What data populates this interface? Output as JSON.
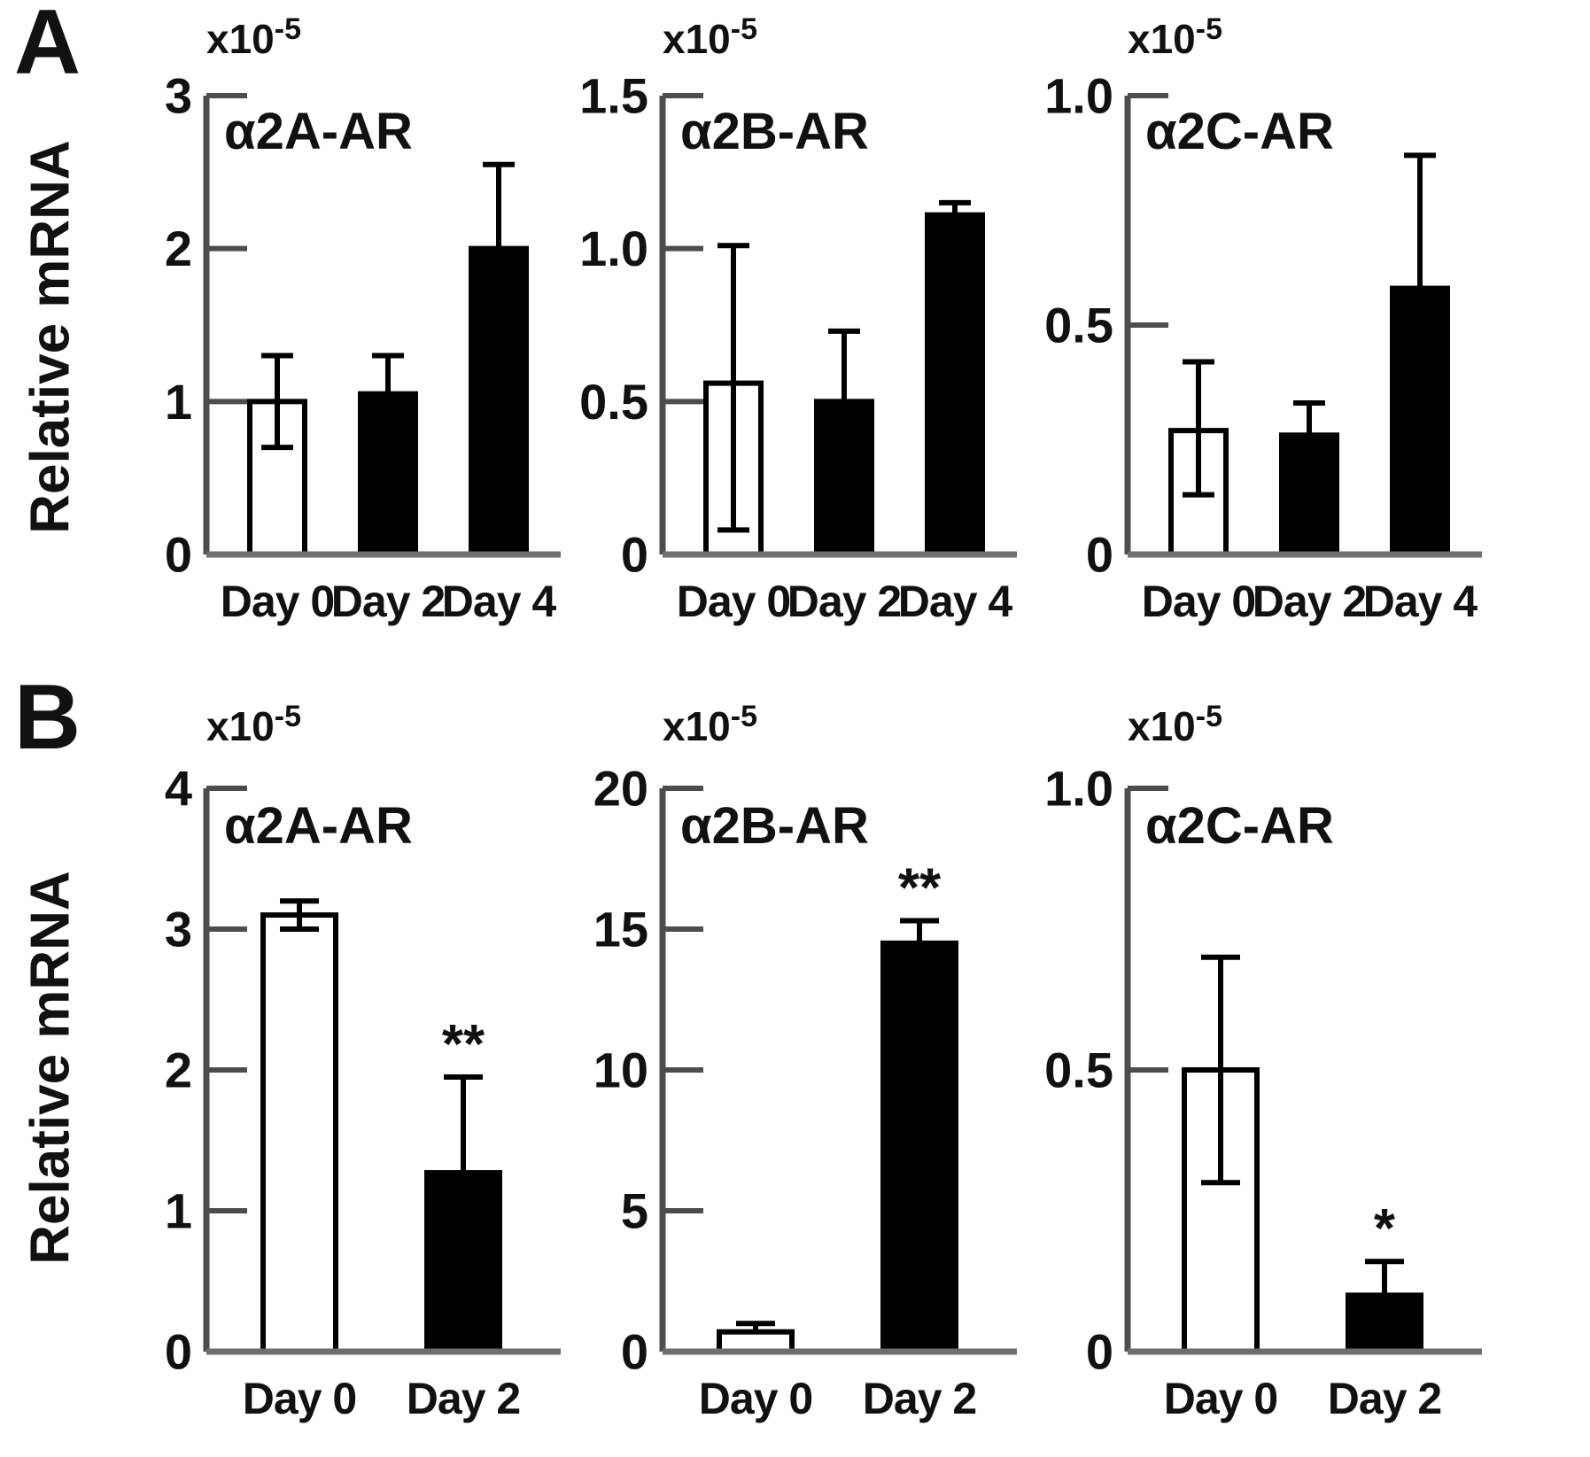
{
  "figure": {
    "y_axis_label": "Relative mRNA",
    "unit": {
      "base": "x10",
      "exponent": "-5"
    },
    "colors": {
      "axis": "#4d4d4d",
      "baseline": "#6e6e6e",
      "bar_open_fill": "#ffffff",
      "bar_solid_fill": "#000000",
      "text": "#111111"
    }
  },
  "panels": [
    {
      "letter": "A"
    },
    {
      "letter": "B"
    }
  ],
  "chart_data": [
    {
      "type": "bar",
      "panel": "A",
      "title": "α2A-AR",
      "unit_label": "x10⁻⁵",
      "ylabel": "Relative mRNA",
      "ylim": [
        0,
        3
      ],
      "yticks": [
        0,
        1,
        2,
        3
      ],
      "ytick_labels": [
        "0",
        "1",
        "2",
        "3"
      ],
      "grid": false,
      "categories": [
        "Day 0",
        "Day 2",
        "Day 4"
      ],
      "bars": [
        {
          "label": "Day 0",
          "value": 1.0,
          "err_low": 0.7,
          "err_high": 1.3,
          "style": "open",
          "sig": ""
        },
        {
          "label": "Day 2",
          "value": 1.05,
          "err_high": 1.3,
          "style": "solid",
          "sig": ""
        },
        {
          "label": "Day 4",
          "value": 2.0,
          "err_high": 2.55,
          "style": "solid",
          "sig": ""
        }
      ]
    },
    {
      "type": "bar",
      "panel": "A",
      "title": "α2B-AR",
      "unit_label": "x10⁻⁵",
      "ylabel": "Relative mRNA",
      "ylim": [
        0,
        1.5
      ],
      "yticks": [
        0,
        0.5,
        1.0,
        1.5
      ],
      "ytick_labels": [
        "0",
        "0.5",
        "1.0",
        "1.5"
      ],
      "grid": false,
      "categories": [
        "Day 0",
        "Day 2",
        "Day 4"
      ],
      "bars": [
        {
          "label": "Day 0",
          "value": 0.56,
          "err_low": 0.08,
          "err_high": 1.01,
          "style": "open",
          "sig": ""
        },
        {
          "label": "Day 2",
          "value": 0.5,
          "err_high": 0.73,
          "style": "solid",
          "sig": ""
        },
        {
          "label": "Day 4",
          "value": 1.11,
          "err_high": 1.15,
          "style": "solid",
          "sig": ""
        }
      ]
    },
    {
      "type": "bar",
      "panel": "A",
      "title": "α2C-AR",
      "unit_label": "x10⁻⁵",
      "ylabel": "Relative mRNA",
      "ylim": [
        0,
        1.0
      ],
      "yticks": [
        0,
        0.5,
        1.0
      ],
      "ytick_labels": [
        "0",
        "0.5",
        "1.0"
      ],
      "grid": false,
      "categories": [
        "Day 0",
        "Day 2",
        "Day 4"
      ],
      "bars": [
        {
          "label": "Day 0",
          "value": 0.27,
          "err_low": 0.13,
          "err_high": 0.42,
          "style": "open",
          "sig": ""
        },
        {
          "label": "Day 2",
          "value": 0.26,
          "err_high": 0.33,
          "style": "solid",
          "sig": ""
        },
        {
          "label": "Day 4",
          "value": 0.58,
          "err_high": 0.87,
          "style": "solid",
          "sig": ""
        }
      ]
    },
    {
      "type": "bar",
      "panel": "B",
      "title": "α2A-AR",
      "unit_label": "x10⁻⁵",
      "ylabel": "Relative mRNA",
      "ylim": [
        0,
        4
      ],
      "yticks": [
        0,
        1,
        2,
        3,
        4
      ],
      "ytick_labels": [
        "0",
        "1",
        "2",
        "3",
        "4"
      ],
      "grid": false,
      "categories": [
        "Day 0",
        "Day 2"
      ],
      "bars": [
        {
          "label": "Day 0",
          "value": 3.1,
          "err_low": 3.0,
          "err_high": 3.2,
          "style": "open",
          "sig": ""
        },
        {
          "label": "Day 2",
          "value": 1.27,
          "err_high": 1.95,
          "style": "solid",
          "sig": "**"
        }
      ]
    },
    {
      "type": "bar",
      "panel": "B",
      "title": "α2B-AR",
      "unit_label": "x10⁻⁵",
      "ylabel": "Relative mRNA",
      "ylim": [
        0,
        20
      ],
      "yticks": [
        0,
        5,
        10,
        15,
        20
      ],
      "ytick_labels": [
        "0",
        "5",
        "10",
        "15",
        "20"
      ],
      "grid": false,
      "categories": [
        "Day 0",
        "Day 2"
      ],
      "bars": [
        {
          "label": "Day 0",
          "value": 0.7,
          "err_high": 1.0,
          "style": "open",
          "sig": ""
        },
        {
          "label": "Day 2",
          "value": 14.5,
          "err_high": 15.3,
          "style": "solid",
          "sig": "**"
        }
      ]
    },
    {
      "type": "bar",
      "panel": "B",
      "title": "α2C-AR",
      "unit_label": "x10⁻⁵",
      "ylabel": "Relative mRNA",
      "ylim": [
        0,
        1.0
      ],
      "yticks": [
        0,
        0.5,
        1.0
      ],
      "ytick_labels": [
        "0",
        "0.5",
        "1.0"
      ],
      "grid": false,
      "categories": [
        "Day 0",
        "Day 2"
      ],
      "bars": [
        {
          "label": "Day 0",
          "value": 0.5,
          "err_low": 0.3,
          "err_high": 0.7,
          "style": "open",
          "sig": ""
        },
        {
          "label": "Day 2",
          "value": 0.1,
          "err_high": 0.16,
          "style": "solid",
          "sig": "*"
        }
      ]
    }
  ]
}
